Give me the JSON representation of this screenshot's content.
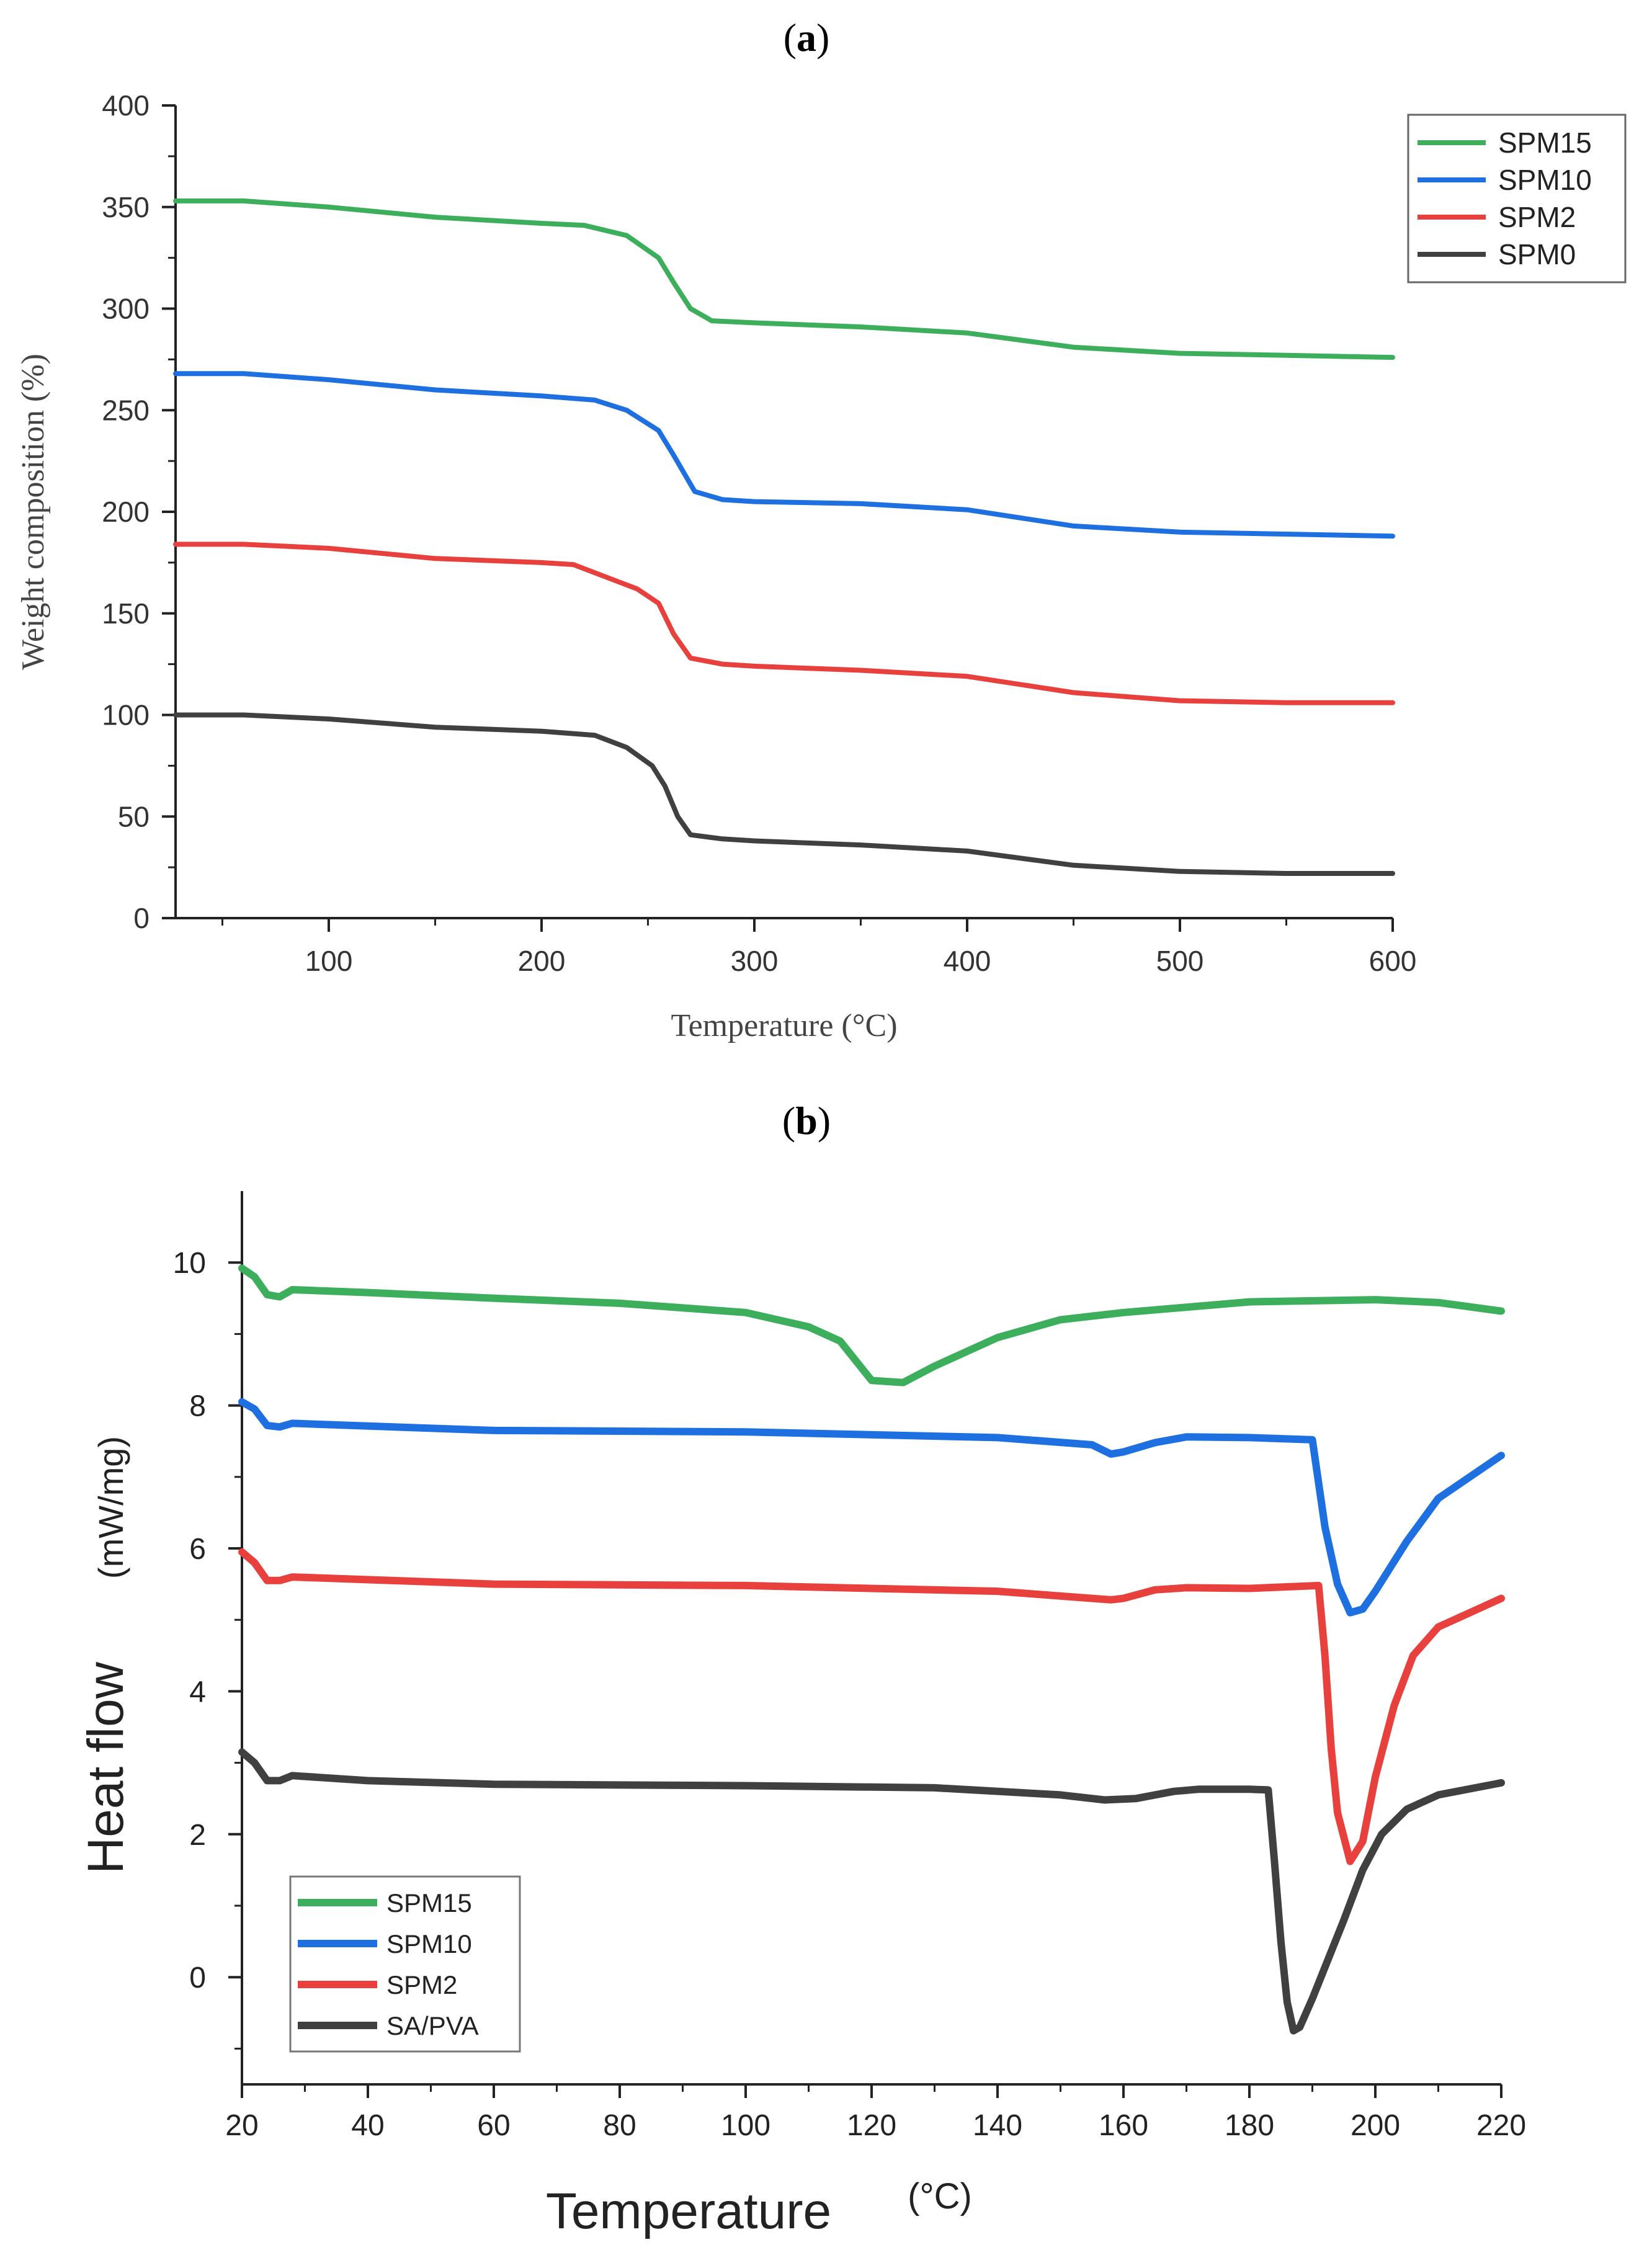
{
  "chart_data": [
    {
      "panel_label": "a",
      "type": "line",
      "title": "",
      "xlabel": "Temperature (°C)",
      "ylabel": "Weight composition (%)",
      "xlim": [
        28,
        600
      ],
      "ylim": [
        0,
        400
      ],
      "xticks": [
        100,
        200,
        300,
        400,
        500,
        600
      ],
      "yticks": [
        0,
        50,
        100,
        150,
        200,
        250,
        300,
        350,
        400
      ],
      "legend_position": "top-right",
      "series": [
        {
          "name": "SPM15",
          "color": "#3daf5c",
          "points": [
            [
              28,
              353
            ],
            [
              60,
              353
            ],
            [
              100,
              350
            ],
            [
              150,
              345
            ],
            [
              200,
              342
            ],
            [
              220,
              341
            ],
            [
              240,
              336
            ],
            [
              255,
              325
            ],
            [
              262,
              313
            ],
            [
              270,
              300
            ],
            [
              280,
              294
            ],
            [
              300,
              293
            ],
            [
              350,
              291
            ],
            [
              400,
              288
            ],
            [
              450,
              281
            ],
            [
              500,
              278
            ],
            [
              550,
              277
            ],
            [
              600,
              276
            ]
          ]
        },
        {
          "name": "SPM10",
          "color": "#1e6fe0",
          "points": [
            [
              28,
              268
            ],
            [
              60,
              268
            ],
            [
              100,
              265
            ],
            [
              150,
              260
            ],
            [
              200,
              257
            ],
            [
              225,
              255
            ],
            [
              240,
              250
            ],
            [
              255,
              240
            ],
            [
              262,
              228
            ],
            [
              272,
              210
            ],
            [
              285,
              206
            ],
            [
              300,
              205
            ],
            [
              350,
              204
            ],
            [
              400,
              201
            ],
            [
              450,
              193
            ],
            [
              500,
              190
            ],
            [
              550,
              189
            ],
            [
              600,
              188
            ]
          ]
        },
        {
          "name": "SPM2",
          "color": "#e8403c",
          "points": [
            [
              28,
              184
            ],
            [
              60,
              184
            ],
            [
              100,
              182
            ],
            [
              150,
              177
            ],
            [
              200,
              175
            ],
            [
              215,
              174
            ],
            [
              230,
              168
            ],
            [
              245,
              162
            ],
            [
              255,
              155
            ],
            [
              262,
              140
            ],
            [
              270,
              128
            ],
            [
              285,
              125
            ],
            [
              300,
              124
            ],
            [
              350,
              122
            ],
            [
              400,
              119
            ],
            [
              450,
              111
            ],
            [
              500,
              107
            ],
            [
              550,
              106
            ],
            [
              600,
              106
            ]
          ]
        },
        {
          "name": "SPM0",
          "color": "#404040",
          "points": [
            [
              28,
              100
            ],
            [
              60,
              100
            ],
            [
              100,
              98
            ],
            [
              150,
              94
            ],
            [
              200,
              92
            ],
            [
              225,
              90
            ],
            [
              240,
              84
            ],
            [
              252,
              75
            ],
            [
              258,
              65
            ],
            [
              264,
              50
            ],
            [
              270,
              41
            ],
            [
              285,
              39
            ],
            [
              300,
              38
            ],
            [
              350,
              36
            ],
            [
              400,
              33
            ],
            [
              450,
              26
            ],
            [
              500,
              23
            ],
            [
              550,
              22
            ],
            [
              600,
              22
            ]
          ]
        }
      ]
    },
    {
      "panel_label": "b",
      "type": "line",
      "title": "",
      "xlabel": "Temperature",
      "xlabel_unit": "(°C)",
      "ylabel": "Heat flow",
      "ylabel_unit": "(mW/mg)",
      "xlim": [
        20,
        220
      ],
      "ylim": [
        -1.5,
        11
      ],
      "xticks": [
        20,
        40,
        60,
        80,
        100,
        120,
        140,
        160,
        180,
        200,
        220
      ],
      "yticks": [
        0,
        2,
        4,
        6,
        8,
        10
      ],
      "legend_position": "bottom-left",
      "series": [
        {
          "name": "SPM15",
          "color": "#3daf5c",
          "points": [
            [
              20,
              9.92
            ],
            [
              22,
              9.8
            ],
            [
              24,
              9.55
            ],
            [
              26,
              9.52
            ],
            [
              28,
              9.62
            ],
            [
              40,
              9.58
            ],
            [
              60,
              9.5
            ],
            [
              80,
              9.43
            ],
            [
              100,
              9.3
            ],
            [
              110,
              9.1
            ],
            [
              115,
              8.9
            ],
            [
              120,
              8.35
            ],
            [
              125,
              8.32
            ],
            [
              130,
              8.55
            ],
            [
              140,
              8.95
            ],
            [
              150,
              9.2
            ],
            [
              160,
              9.3
            ],
            [
              180,
              9.45
            ],
            [
              200,
              9.48
            ],
            [
              210,
              9.44
            ],
            [
              220,
              9.32
            ]
          ]
        },
        {
          "name": "SPM10",
          "color": "#1e6fe0",
          "points": [
            [
              20,
              8.05
            ],
            [
              22,
              7.95
            ],
            [
              24,
              7.72
            ],
            [
              26,
              7.7
            ],
            [
              28,
              7.75
            ],
            [
              60,
              7.65
            ],
            [
              100,
              7.63
            ],
            [
              140,
              7.55
            ],
            [
              155,
              7.45
            ],
            [
              158,
              7.32
            ],
            [
              160,
              7.35
            ],
            [
              165,
              7.48
            ],
            [
              170,
              7.56
            ],
            [
              180,
              7.55
            ],
            [
              190,
              7.52
            ],
            [
              192,
              6.3
            ],
            [
              194,
              5.5
            ],
            [
              196,
              5.1
            ],
            [
              198,
              5.15
            ],
            [
              200,
              5.4
            ],
            [
              205,
              6.1
            ],
            [
              210,
              6.7
            ],
            [
              220,
              7.3
            ]
          ]
        },
        {
          "name": "SPM2",
          "color": "#e8403c",
          "points": [
            [
              20,
              5.95
            ],
            [
              22,
              5.8
            ],
            [
              24,
              5.55
            ],
            [
              26,
              5.55
            ],
            [
              28,
              5.6
            ],
            [
              60,
              5.5
            ],
            [
              100,
              5.48
            ],
            [
              140,
              5.4
            ],
            [
              155,
              5.3
            ],
            [
              158,
              5.28
            ],
            [
              160,
              5.3
            ],
            [
              165,
              5.42
            ],
            [
              170,
              5.45
            ],
            [
              180,
              5.44
            ],
            [
              191,
              5.48
            ],
            [
              192,
              4.5
            ],
            [
              193,
              3.2
            ],
            [
              194,
              2.3
            ],
            [
              196,
              1.62
            ],
            [
              198,
              1.9
            ],
            [
              200,
              2.8
            ],
            [
              203,
              3.8
            ],
            [
              206,
              4.5
            ],
            [
              210,
              4.9
            ],
            [
              215,
              5.1
            ],
            [
              220,
              5.3
            ]
          ]
        },
        {
          "name": "SA/PVA",
          "color": "#404040",
          "points": [
            [
              20,
              3.15
            ],
            [
              22,
              3.0
            ],
            [
              24,
              2.75
            ],
            [
              26,
              2.75
            ],
            [
              28,
              2.82
            ],
            [
              40,
              2.75
            ],
            [
              60,
              2.7
            ],
            [
              100,
              2.68
            ],
            [
              130,
              2.65
            ],
            [
              150,
              2.55
            ],
            [
              157,
              2.48
            ],
            [
              162,
              2.5
            ],
            [
              168,
              2.6
            ],
            [
              172,
              2.63
            ],
            [
              180,
              2.63
            ],
            [
              183,
              2.62
            ],
            [
              184,
              1.6
            ],
            [
              185,
              0.5
            ],
            [
              186,
              -0.35
            ],
            [
              187,
              -0.75
            ],
            [
              188,
              -0.7
            ],
            [
              190,
              -0.3
            ],
            [
              195,
              0.8
            ],
            [
              198,
              1.5
            ],
            [
              201,
              2.0
            ],
            [
              205,
              2.35
            ],
            [
              210,
              2.55
            ],
            [
              220,
              2.72
            ]
          ]
        }
      ]
    }
  ]
}
